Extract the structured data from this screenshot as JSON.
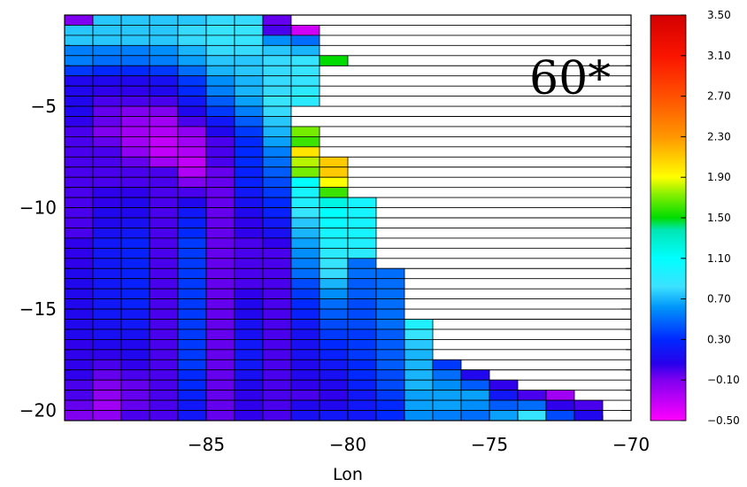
{
  "chart_data": {
    "type": "heatmap",
    "title": "",
    "annotation": "60*",
    "xlabel": "Lon",
    "ylabel": "",
    "xlim": [
      -90,
      -70
    ],
    "ylim": [
      -20.5,
      -0.5
    ],
    "x_ticks": [
      -85,
      -80,
      -75,
      -70
    ],
    "x_tick_labels": [
      "−85",
      "−80",
      "−75",
      "−70"
    ],
    "y_ticks": [
      -5,
      -10,
      -15,
      -20
    ],
    "y_tick_labels": [
      "−5",
      "−10",
      "−15",
      "−20"
    ],
    "colorbar": {
      "min": -0.5,
      "max": 3.5,
      "tick_values": [
        3.5,
        3.1,
        2.7,
        2.3,
        1.9,
        1.5,
        1.1,
        0.7,
        0.3,
        -0.1,
        -0.5
      ],
      "tick_labels": [
        "3.50",
        "3.10",
        "2.70",
        "2.30",
        "1.90",
        "1.50",
        "1.10",
        "0.70",
        "0.30",
        "−0.10",
        "−0.50"
      ]
    },
    "columns": [
      {
        "lon": -89.5,
        "start_lat": -0.75,
        "lat_step": -0.5,
        "values": [
          -0.1,
          0.75,
          0.75,
          0.55,
          0.55,
          0.35,
          0.1,
          0.1,
          0.1,
          0.1,
          0.05,
          0.0,
          0.0,
          0.0,
          0.0,
          0.0,
          0.0,
          0.0,
          0.0,
          0.0,
          0.0,
          0.0,
          0.05,
          0.05,
          0.05,
          0.1,
          0.1,
          0.1,
          0.1,
          0.1,
          0.1,
          0.1,
          0.05,
          0.05,
          0.05,
          0.05,
          0.0,
          0.0,
          -0.05,
          -0.1
        ]
      },
      {
        "lon": -88.5,
        "start_lat": -0.75,
        "lat_step": -0.5,
        "values": [
          0.75,
          0.75,
          0.75,
          0.55,
          0.5,
          0.3,
          0.1,
          0.05,
          0.0,
          -0.05,
          -0.05,
          -0.1,
          -0.05,
          0.0,
          0.0,
          0.0,
          0.0,
          0.05,
          0.05,
          0.1,
          0.1,
          0.15,
          0.2,
          0.2,
          0.2,
          0.2,
          0.2,
          0.2,
          0.2,
          0.2,
          0.15,
          0.15,
          0.1,
          0.05,
          0.0,
          -0.05,
          -0.1,
          -0.15,
          -0.2,
          -0.15
        ]
      },
      {
        "lon": -87.5,
        "start_lat": -0.75,
        "lat_step": -0.5,
        "values": [
          0.75,
          0.75,
          0.75,
          0.55,
          0.5,
          0.3,
          0.1,
          0.05,
          0.0,
          -0.1,
          -0.15,
          -0.2,
          -0.2,
          -0.15,
          -0.05,
          0.0,
          0.0,
          0.05,
          0.1,
          0.1,
          0.15,
          0.2,
          0.25,
          0.25,
          0.25,
          0.25,
          0.25,
          0.25,
          0.25,
          0.2,
          0.2,
          0.15,
          0.1,
          0.1,
          0.05,
          0.0,
          -0.05,
          -0.05,
          -0.05,
          0.0
        ]
      },
      {
        "lon": -86.5,
        "start_lat": -0.75,
        "lat_step": -0.5,
        "values": [
          0.75,
          0.75,
          0.75,
          0.6,
          0.55,
          0.35,
          0.15,
          0.1,
          0.0,
          -0.1,
          -0.2,
          -0.25,
          -0.3,
          -0.3,
          -0.2,
          0.0,
          0.0,
          0.0,
          0.0,
          0.0,
          0.0,
          0.0,
          0.0,
          0.0,
          0.0,
          0.0,
          0.0,
          0.0,
          0.0,
          0.0,
          0.0,
          0.0,
          0.0,
          0.0,
          0.0,
          0.0,
          0.0,
          0.0,
          0.0,
          0.0
        ]
      },
      {
        "lon": -85.5,
        "start_lat": -0.75,
        "lat_step": -0.5,
        "values": [
          0.75,
          0.8,
          0.8,
          0.7,
          0.65,
          0.5,
          0.35,
          0.3,
          0.2,
          0.1,
          0.0,
          -0.15,
          -0.2,
          -0.25,
          -0.3,
          -0.25,
          -0.1,
          0.0,
          0.1,
          0.2,
          0.25,
          0.3,
          0.35,
          0.35,
          0.35,
          0.35,
          0.35,
          0.35,
          0.35,
          0.35,
          0.35,
          0.35,
          0.35,
          0.35,
          0.35,
          0.3,
          0.3,
          0.25,
          0.2,
          0.2
        ]
      },
      {
        "lon": -84.5,
        "start_lat": -0.75,
        "lat_step": -0.5,
        "values": [
          0.8,
          0.85,
          0.85,
          0.8,
          0.75,
          0.7,
          0.6,
          0.55,
          0.45,
          0.35,
          0.2,
          0.1,
          0.0,
          0.0,
          0.0,
          -0.05,
          -0.05,
          -0.05,
          -0.05,
          -0.05,
          -0.05,
          -0.05,
          -0.05,
          -0.05,
          -0.05,
          -0.05,
          -0.05,
          -0.05,
          -0.05,
          -0.05,
          -0.05,
          -0.05,
          -0.05,
          -0.05,
          -0.05,
          -0.05,
          -0.05,
          -0.05,
          -0.05,
          -0.05
        ]
      },
      {
        "lon": -83.5,
        "start_lat": -0.75,
        "lat_step": -0.5,
        "values": [
          0.8,
          0.85,
          0.85,
          0.8,
          0.75,
          0.75,
          0.7,
          0.7,
          0.65,
          0.55,
          0.45,
          0.35,
          0.3,
          0.3,
          0.3,
          0.25,
          0.25,
          0.2,
          0.15,
          0.1,
          0.05,
          0.05,
          0.0,
          0.0,
          0.0,
          0.0,
          0.0,
          0.05,
          0.1,
          0.1,
          0.15,
          0.15,
          0.2,
          0.2,
          0.2,
          0.15,
          0.1,
          0.05,
          0.05,
          0.05
        ]
      },
      {
        "lon": -82.5,
        "start_lat": -0.75,
        "lat_step": -0.5,
        "values": [
          -0.05,
          0.0,
          0.6,
          0.75,
          0.8,
          0.8,
          0.8,
          0.8,
          0.85,
          0.8,
          0.75,
          0.7,
          0.65,
          0.55,
          0.5,
          0.45,
          0.4,
          0.35,
          0.3,
          0.25,
          0.2,
          0.15,
          0.05,
          0.0,
          0.0,
          0.0,
          0.0,
          0.0,
          0.0,
          0.0,
          0.0,
          0.0,
          0.0,
          0.0,
          0.0,
          0.0,
          0.0,
          0.0,
          0.0,
          0.0
        ]
      },
      {
        "lon": -81.5,
        "start_lat": -0.75,
        "lat_step": -0.5,
        "values": [
          null,
          -0.35,
          0.5,
          0.7,
          0.85,
          0.85,
          0.85,
          0.9,
          0.9,
          null,
          null,
          1.7,
          1.6,
          2.0,
          1.8,
          1.7,
          1.1,
          1.0,
          0.95,
          0.85,
          0.75,
          0.7,
          0.65,
          0.6,
          0.55,
          0.5,
          0.4,
          0.35,
          0.3,
          0.25,
          0.2,
          0.15,
          0.15,
          0.15,
          0.1,
          0.1,
          0.05,
          0.0,
          0.1,
          0.15
        ]
      },
      {
        "lon": -80.5,
        "start_lat": -0.75,
        "lat_step": -0.5,
        "values": [
          null,
          null,
          null,
          null,
          1.5,
          null,
          null,
          null,
          null,
          null,
          null,
          null,
          null,
          null,
          2.1,
          2.1,
          1.9,
          1.6,
          1.2,
          1.1,
          1.05,
          1.0,
          0.95,
          0.9,
          0.85,
          0.8,
          0.7,
          0.6,
          0.5,
          0.45,
          0.4,
          0.35,
          0.3,
          0.25,
          0.2,
          0.15,
          0.1,
          0.05,
          0.1,
          0.2
        ]
      },
      {
        "lon": -79.5,
        "start_lat": -0.75,
        "lat_step": -0.5,
        "values": [
          null,
          null,
          null,
          null,
          null,
          null,
          null,
          null,
          null,
          null,
          null,
          null,
          null,
          null,
          null,
          null,
          null,
          null,
          1.0,
          1.0,
          1.0,
          1.0,
          0.95,
          0.9,
          0.5,
          0.5,
          0.45,
          0.45,
          0.4,
          0.4,
          0.4,
          0.35,
          0.35,
          0.35,
          0.3,
          0.3,
          0.25,
          0.2,
          0.2,
          0.2
        ]
      },
      {
        "lon": -78.5,
        "start_lat": -0.75,
        "lat_step": -0.5,
        "values": [
          null,
          null,
          null,
          null,
          null,
          null,
          null,
          null,
          null,
          null,
          null,
          null,
          null,
          null,
          null,
          null,
          null,
          null,
          null,
          null,
          null,
          null,
          null,
          null,
          null,
          0.5,
          0.5,
          0.5,
          0.5,
          0.5,
          0.5,
          0.45,
          0.45,
          0.45,
          0.45,
          0.4,
          0.4,
          0.35,
          0.3,
          0.3
        ]
      },
      {
        "lon": -77.5,
        "start_lat": -0.75,
        "lat_step": -0.5,
        "values": [
          null,
          null,
          null,
          null,
          null,
          null,
          null,
          null,
          null,
          null,
          null,
          null,
          null,
          null,
          null,
          null,
          null,
          null,
          null,
          null,
          null,
          null,
          null,
          null,
          null,
          null,
          null,
          null,
          null,
          null,
          0.95,
          0.85,
          0.75,
          0.7,
          0.7,
          0.7,
          0.7,
          0.65,
          0.65,
          0.6
        ]
      },
      {
        "lon": -76.5,
        "start_lat": -0.75,
        "lat_step": -0.5,
        "values": [
          null,
          null,
          null,
          null,
          null,
          null,
          null,
          null,
          null,
          null,
          null,
          null,
          null,
          null,
          null,
          null,
          null,
          null,
          null,
          null,
          null,
          null,
          null,
          null,
          null,
          null,
          null,
          null,
          null,
          null,
          null,
          null,
          null,
          null,
          0.35,
          0.5,
          0.6,
          0.65,
          0.65,
          0.55
        ]
      },
      {
        "lon": -75.5,
        "start_lat": -0.75,
        "lat_step": -0.5,
        "values": [
          null,
          null,
          null,
          null,
          null,
          null,
          null,
          null,
          null,
          null,
          null,
          null,
          null,
          null,
          null,
          null,
          null,
          null,
          null,
          null,
          null,
          null,
          null,
          null,
          null,
          null,
          null,
          null,
          null,
          null,
          null,
          null,
          null,
          null,
          null,
          0.1,
          0.45,
          0.65,
          0.6,
          0.5
        ]
      },
      {
        "lon": -74.5,
        "start_lat": -0.75,
        "lat_step": -0.5,
        "values": [
          null,
          null,
          null,
          null,
          null,
          null,
          null,
          null,
          null,
          null,
          null,
          null,
          null,
          null,
          null,
          null,
          null,
          null,
          null,
          null,
          null,
          null,
          null,
          null,
          null,
          null,
          null,
          null,
          null,
          null,
          null,
          null,
          null,
          null,
          null,
          null,
          0.05,
          0.2,
          0.45,
          0.65
        ]
      },
      {
        "lon": -73.5,
        "start_lat": -0.75,
        "lat_step": -0.5,
        "values": [
          null,
          null,
          null,
          null,
          null,
          null,
          null,
          null,
          null,
          null,
          null,
          null,
          null,
          null,
          null,
          null,
          null,
          null,
          null,
          null,
          null,
          null,
          null,
          null,
          null,
          null,
          null,
          null,
          null,
          null,
          null,
          null,
          null,
          null,
          null,
          null,
          null,
          0.0,
          0.5,
          0.85
        ]
      },
      {
        "lon": -72.5,
        "start_lat": -0.75,
        "lat_step": -0.5,
        "values": [
          null,
          null,
          null,
          null,
          null,
          null,
          null,
          null,
          null,
          null,
          null,
          null,
          null,
          null,
          null,
          null,
          null,
          null,
          null,
          null,
          null,
          null,
          null,
          null,
          null,
          null,
          null,
          null,
          null,
          null,
          null,
          null,
          null,
          null,
          null,
          null,
          null,
          -0.2,
          0.05,
          0.4
        ]
      },
      {
        "lon": -71.5,
        "start_lat": -0.75,
        "lat_step": -0.5,
        "values": [
          null,
          null,
          null,
          null,
          null,
          null,
          null,
          null,
          null,
          null,
          null,
          null,
          null,
          null,
          null,
          null,
          null,
          null,
          null,
          null,
          null,
          null,
          null,
          null,
          null,
          null,
          null,
          null,
          null,
          null,
          null,
          null,
          null,
          null,
          null,
          null,
          null,
          null,
          0.0,
          0.1
        ]
      }
    ]
  }
}
